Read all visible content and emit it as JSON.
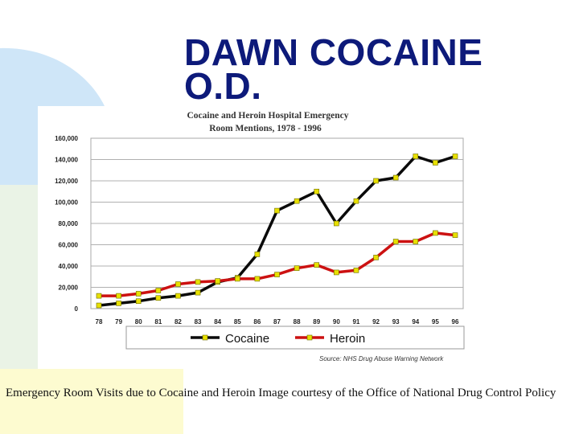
{
  "slide": {
    "title_line1": "DAWN COCAINE",
    "title_line2": "O.D.",
    "caption": "Emergency Room Visits due to Cocaine and Heroin Image courtesy of the Office of National Drug Control Policy",
    "colors": {
      "title": "#0d1a7a",
      "bg_blue": "#cfe6f8",
      "bg_yellow": "#fdfbd0"
    }
  },
  "chart_data": {
    "type": "line",
    "title_line1": "Cocaine and Heroin Hospital Emergency",
    "title_line2": "Room Mentions, 1978 - 1996",
    "source": "Source: NHS Drug Abuse Warning Network",
    "categories": [
      "78",
      "79",
      "80",
      "81",
      "82",
      "83",
      "84",
      "85",
      "86",
      "87",
      "88",
      "89",
      "90",
      "91",
      "92",
      "93",
      "94",
      "95",
      "96"
    ],
    "y_ticks": [
      "160,000",
      "140,000",
      "120,000",
      "100,000",
      "80,000",
      "60,000",
      "40,000",
      "20,000",
      "0"
    ],
    "ylim": [
      0,
      160000
    ],
    "grid": true,
    "legend_position": "bottom",
    "series": [
      {
        "name": "Cocaine",
        "color": "#0a0a0a",
        "values": [
          3000,
          5000,
          7000,
          10000,
          12000,
          15000,
          25000,
          29000,
          51000,
          92000,
          101000,
          110000,
          80000,
          101000,
          120000,
          123000,
          143000,
          137000,
          143000
        ]
      },
      {
        "name": "Heroin",
        "color": "#cc1111",
        "values": [
          12000,
          12000,
          14000,
          17000,
          23000,
          25000,
          26000,
          28000,
          28000,
          32000,
          38000,
          41000,
          34000,
          36000,
          48000,
          63000,
          63000,
          71000,
          69000
        ]
      }
    ],
    "marker_color": "#e8e000"
  }
}
